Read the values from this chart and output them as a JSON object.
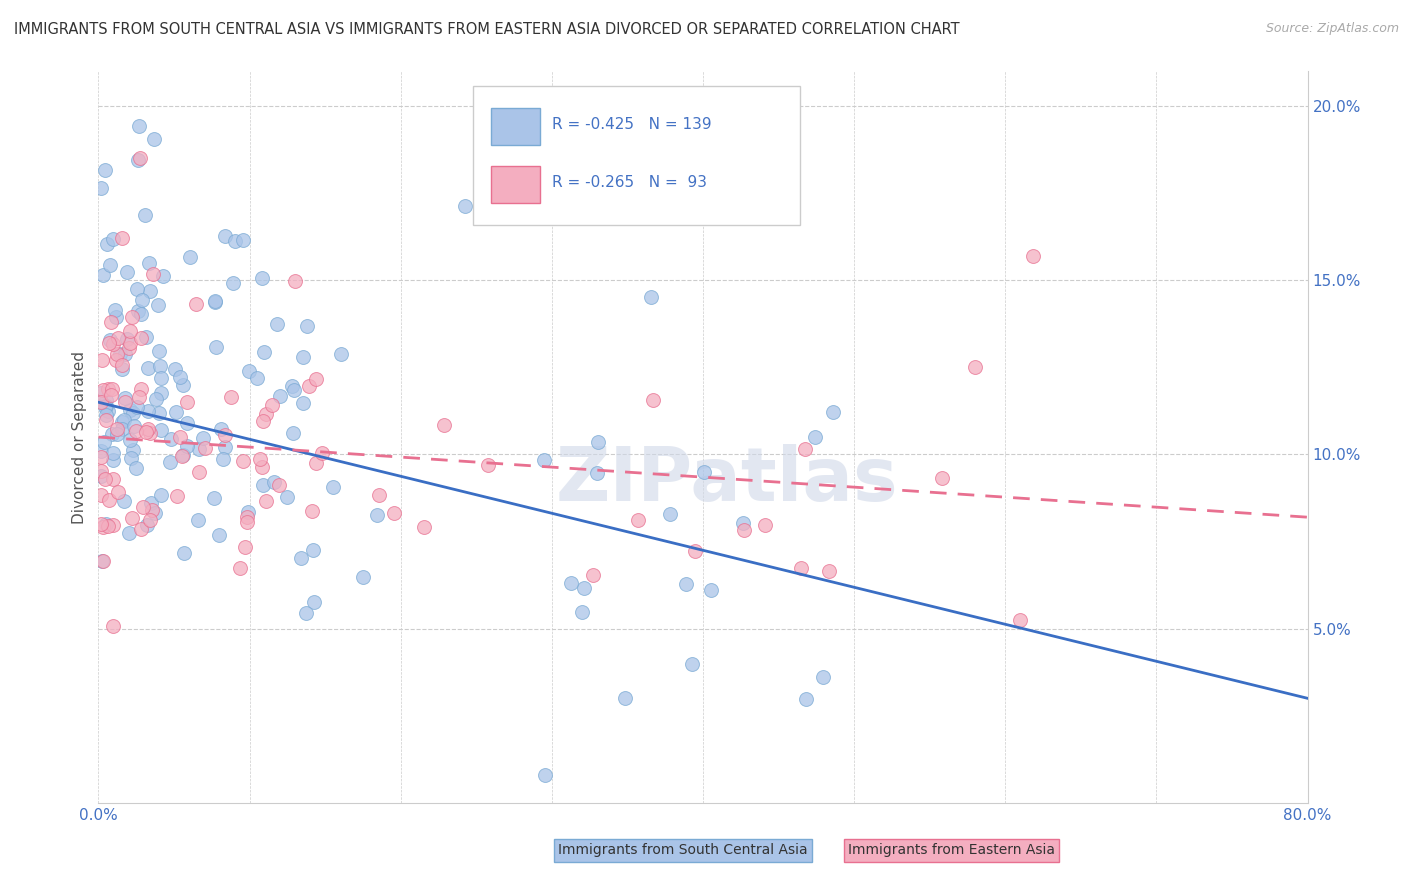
{
  "title": "IMMIGRANTS FROM SOUTH CENTRAL ASIA VS IMMIGRANTS FROM EASTERN ASIA DIVORCED OR SEPARATED CORRELATION CHART",
  "source": "Source: ZipAtlas.com",
  "ylabel": "Divorced or Separated",
  "watermark": "ZIPatlas",
  "series1_label": "Immigrants from South Central Asia",
  "series1_color": "#aac4e8",
  "series1_edge": "#7aaad4",
  "series1_trend_color": "#3a6ec4",
  "series1_R": -0.425,
  "series1_N": 139,
  "series2_label": "Immigrants from Eastern Asia",
  "series2_color": "#f4aec0",
  "series2_edge": "#e87090",
  "series2_trend_color": "#e87090",
  "series2_R": -0.265,
  "series2_N": 93,
  "xlim": [
    0,
    80
  ],
  "ylim": [
    0,
    0.21
  ],
  "ytick_vals": [
    0.05,
    0.1,
    0.15,
    0.2
  ],
  "ytick_labels": [
    "5.0%",
    "10.0%",
    "15.0%",
    "20.0%"
  ],
  "grid_color": "#cccccc",
  "bg_color": "#ffffff",
  "tick_color": "#4472c4",
  "blue_trend_x0": 0,
  "blue_trend_y0": 0.115,
  "blue_trend_x1": 80,
  "blue_trend_y1": 0.03,
  "pink_trend_x0": 0,
  "pink_trend_y0": 0.105,
  "pink_trend_x1": 80,
  "pink_trend_y1": 0.082
}
